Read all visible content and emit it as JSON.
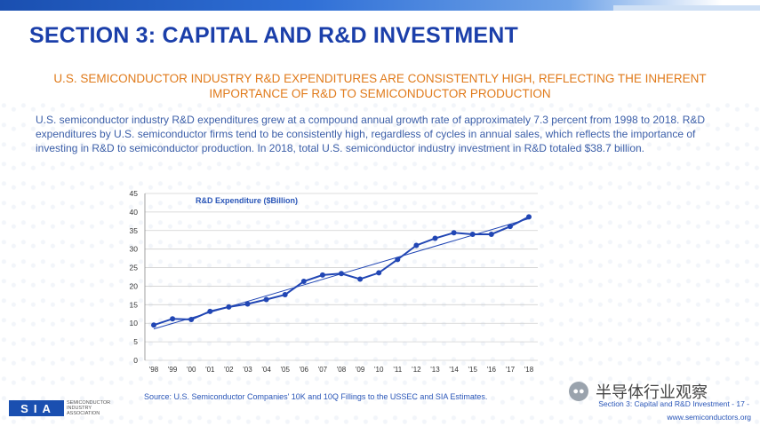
{
  "header": {
    "title": "SECTION 3: CAPITAL AND R&D INVESTMENT",
    "subtitle": "U.S. SEMICONDUCTOR INDUSTRY R&D EXPENDITURES ARE CONSISTENTLY HIGH, REFLECTING THE INHERENT IMPORTANCE OF R&D TO SEMICONDUCTOR PRODUCTION"
  },
  "body": {
    "paragraph": "U.S. semiconductor industry R&D expenditures grew at a compound annual growth rate of approximately 7.3 percent from 1998 to 2018. R&D expenditures by U.S. semiconductor firms tend to be consistently high, regardless of cycles in annual sales, which reflects the importance of investing in R&D to semiconductor production.  In 2018, total U.S. semiconductor industry investment in R&D totaled $38.7 billion."
  },
  "colors": {
    "title": "#1b3faa",
    "subtitle": "#e07a1a",
    "body": "#3b5ea8",
    "series": "#2146b4",
    "grid": "#d0d0d0"
  },
  "chart_data": {
    "type": "line",
    "series_label": "R&D Expenditure ($Billion)",
    "categories": [
      "'98",
      "'99",
      "'00",
      "'01",
      "'02",
      "'03",
      "'04",
      "'05",
      "'06",
      "'07",
      "'08",
      "'09",
      "'10",
      "'11",
      "'12",
      "'13",
      "'14",
      "'15",
      "'16",
      "'17",
      "'18"
    ],
    "series": [
      {
        "values": [
          9.5,
          11.2,
          11.0,
          13.2,
          14.4,
          15.2,
          16.4,
          17.7,
          21.3,
          23.0,
          23.4,
          21.9,
          23.6,
          27.2,
          31.0,
          32.9,
          34.4,
          34.0,
          34.0,
          36.1,
          38.7
        ]
      }
    ],
    "trendline": true,
    "ylim": [
      0,
      45
    ],
    "yticks": [
      0,
      5,
      10,
      15,
      20,
      25,
      30,
      35,
      40,
      45
    ],
    "grid": true
  },
  "footer": {
    "source": "Source: U.S. Semiconductor Companies' 10K and 10Q Fillings to the USSEC and SIA Estimates.",
    "section_page": "Section 3: Capital and R&D Investment - 17 -",
    "url": "www.semiconductors.org",
    "logo": {
      "mark": "SIA",
      "line1": "SEMICONDUCTOR",
      "line2": "INDUSTRY",
      "line3": "ASSOCIATION"
    },
    "watermark": "半导体行业观察",
    "watermark_icon": "wechat-icon"
  }
}
